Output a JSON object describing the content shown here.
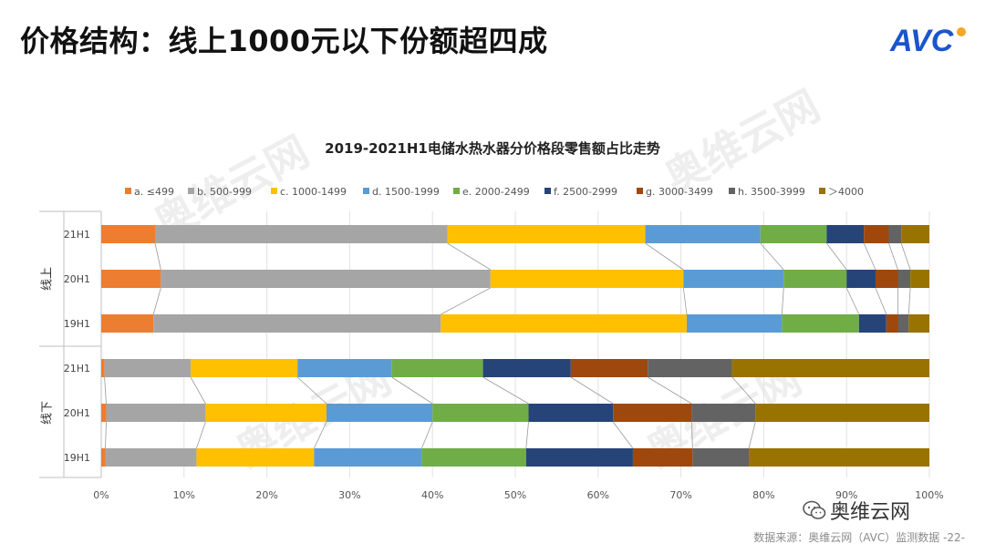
{
  "page": {
    "title": "价格结构：线上1000元以下份额超四成",
    "logo_text": "AVC",
    "brand_color": "#1a56c9",
    "watermark_main": "奥维云网",
    "watermark_sub": "ALL VIEW CLOUD",
    "wechat_label": "奥维云网",
    "footer": "数据来源：奥维云网（AVC）监测数据 -22-"
  },
  "chart_data": {
    "type": "bar",
    "orientation": "horizontal",
    "stacked": true,
    "percent_stacked": true,
    "title": "2019-2021H1电储水热水器分价格段零售额占比走势",
    "legend_position": "top",
    "xlim": [
      0,
      100
    ],
    "x_ticks": [
      "0%",
      "10%",
      "20%",
      "30%",
      "40%",
      "50%",
      "60%",
      "70%",
      "80%",
      "90%",
      "100%"
    ],
    "groups": [
      {
        "label": "线上",
        "categories": [
          "21H1",
          "20H1",
          "19H1"
        ]
      },
      {
        "label": "线下",
        "categories": [
          "21H1",
          "20H1",
          "19H1"
        ]
      }
    ],
    "categories": [
      "线上 21H1",
      "线上 20H1",
      "线上 19H1",
      "线下 21H1",
      "线下 20H1",
      "线下 19H1"
    ],
    "series": [
      {
        "name": "a. ≤499",
        "color": "#ED7D31",
        "values": [
          6.5,
          7.2,
          6.3,
          0.4,
          0.6,
          0.5
        ]
      },
      {
        "name": "b. 500-999",
        "color": "#A5A5A5",
        "values": [
          35.3,
          39.8,
          34.7,
          10.4,
          12.0,
          11.0
        ]
      },
      {
        "name": "c. 1000-1499",
        "color": "#FFC000",
        "values": [
          23.9,
          23.3,
          29.7,
          12.9,
          14.6,
          14.2
        ]
      },
      {
        "name": "d. 1500-1999",
        "color": "#5B9BD5",
        "values": [
          13.9,
          12.1,
          11.5,
          11.4,
          12.8,
          13.0
        ]
      },
      {
        "name": "e. 2000-2499",
        "color": "#70AD47",
        "values": [
          8.0,
          7.6,
          9.3,
          11.0,
          11.6,
          12.6
        ]
      },
      {
        "name": "f. 2500-2999",
        "color": "#264478",
        "values": [
          4.5,
          3.5,
          3.3,
          10.6,
          10.2,
          12.9
        ]
      },
      {
        "name": "g. 3000-3499",
        "color": "#9E480E",
        "values": [
          3.0,
          2.7,
          1.4,
          9.3,
          9.5,
          7.2
        ]
      },
      {
        "name": "h. 3500-3999",
        "color": "#636363",
        "values": [
          1.5,
          1.5,
          1.3,
          10.2,
          7.7,
          6.8
        ]
      },
      {
        "name": "＞4000",
        "color": "#997300",
        "values": [
          3.4,
          2.3,
          2.5,
          23.8,
          21.0,
          21.8
        ]
      }
    ]
  }
}
